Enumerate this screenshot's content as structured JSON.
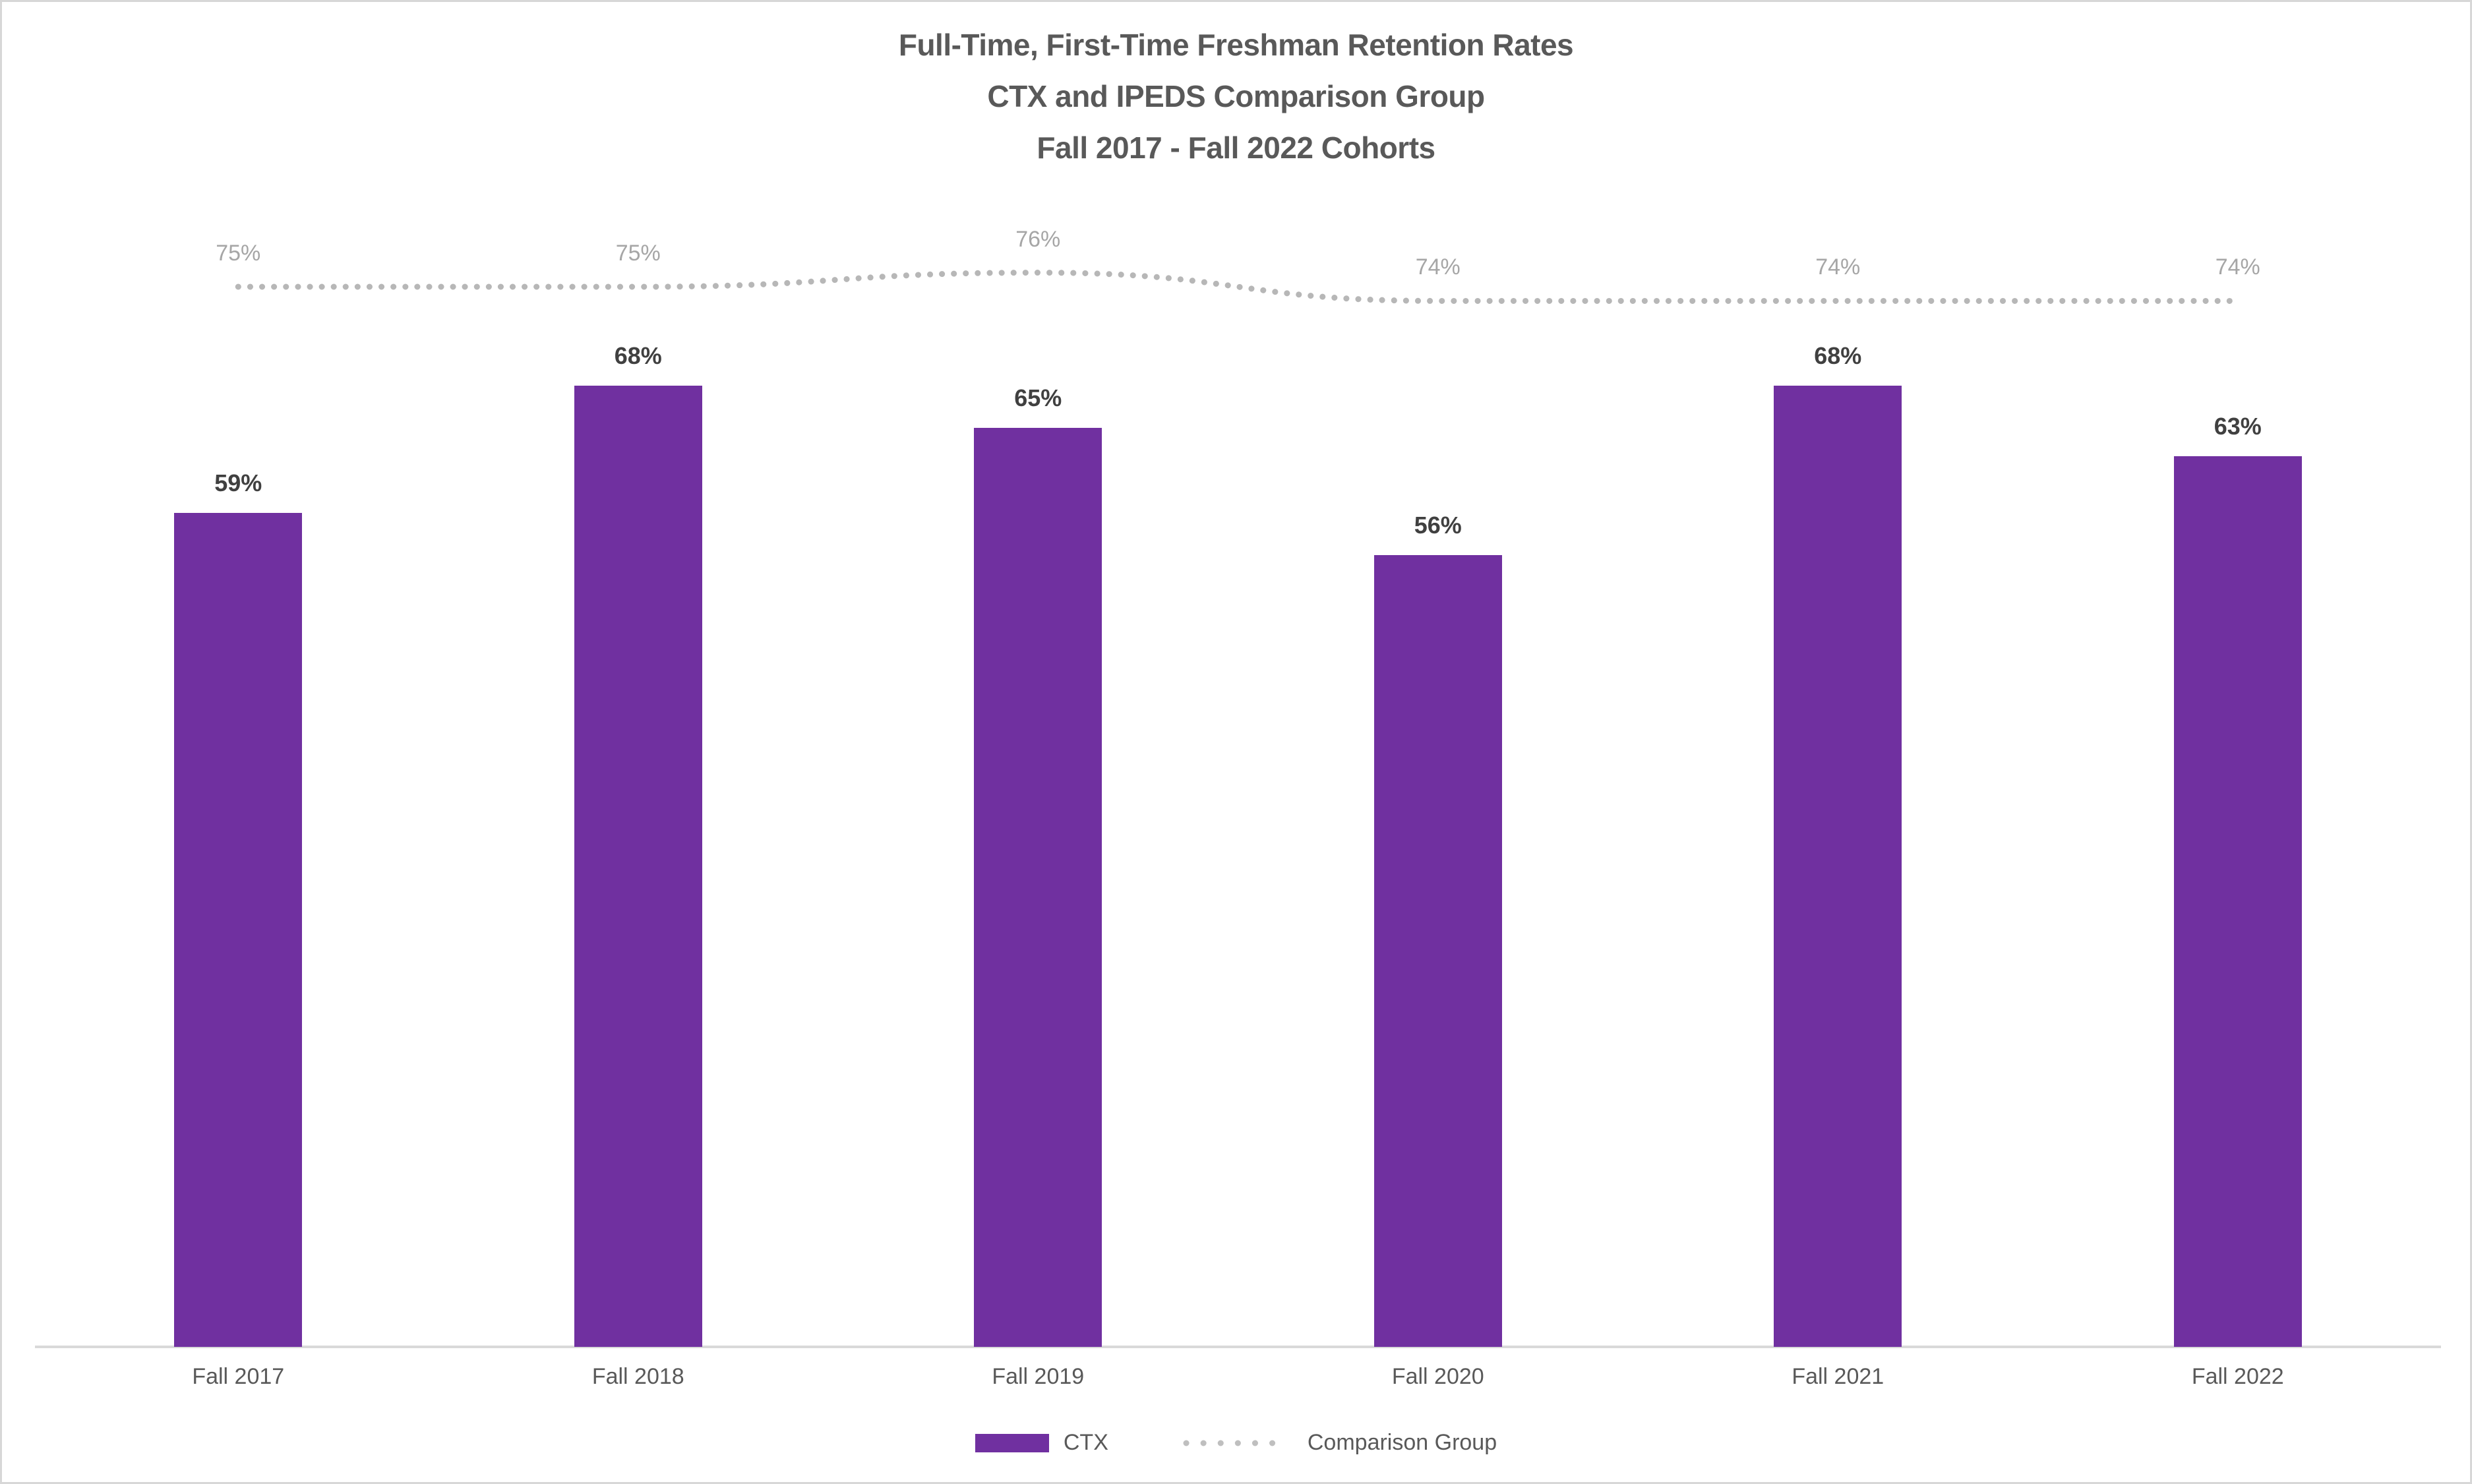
{
  "frame": {
    "background": "#ffffff",
    "border_color": "#d7d7d7"
  },
  "title": {
    "line1": "Full-Time, First-Time Freshman Retention Rates",
    "line2": "CTX and IPEDS Comparison Group",
    "line3": "Fall 2017 - Fall 2022 Cohorts",
    "color": "#595959"
  },
  "legend": {
    "items": [
      {
        "label": "CTX",
        "swatch": "bar",
        "color": "#7030A0"
      },
      {
        "label": "Comparison Group",
        "swatch": "dotted-line",
        "color": "#BFBFBF"
      }
    ],
    "position": "bottom-center"
  },
  "chart_data": {
    "type": "bar",
    "title": "Full-Time, First-Time Freshman Retention Rates | CTX and IPEDS Comparison Group | Fall 2017 - Fall 2022 Cohorts",
    "categories": [
      "Fall 2017",
      "Fall 2018",
      "Fall 2019",
      "Fall 2020",
      "Fall 2021",
      "Fall 2022"
    ],
    "series": [
      {
        "name": "CTX",
        "type": "bar",
        "color": "#7030A0",
        "values": [
          59,
          68,
          65,
          56,
          68,
          63
        ],
        "data_labels": [
          "59%",
          "68%",
          "65%",
          "56%",
          "68%",
          "63%"
        ],
        "data_label_color": "#404040"
      },
      {
        "name": "Comparison Group",
        "type": "dotted-line",
        "color": "#B7B7B7",
        "values": [
          75,
          75,
          76,
          74,
          74,
          74
        ],
        "data_labels": [
          "75%",
          "75%",
          "76%",
          "74%",
          "74%",
          "74%"
        ],
        "data_label_color": "#A6A6A6"
      }
    ],
    "xlabel": "",
    "ylabel": "",
    "ylim": [
      0,
      80
    ],
    "y_axis_visible": false,
    "grid": false,
    "x_axis_line_color": "#d9d9d9",
    "x_tick_label_color": "#595959",
    "legend_position": "bottom"
  }
}
